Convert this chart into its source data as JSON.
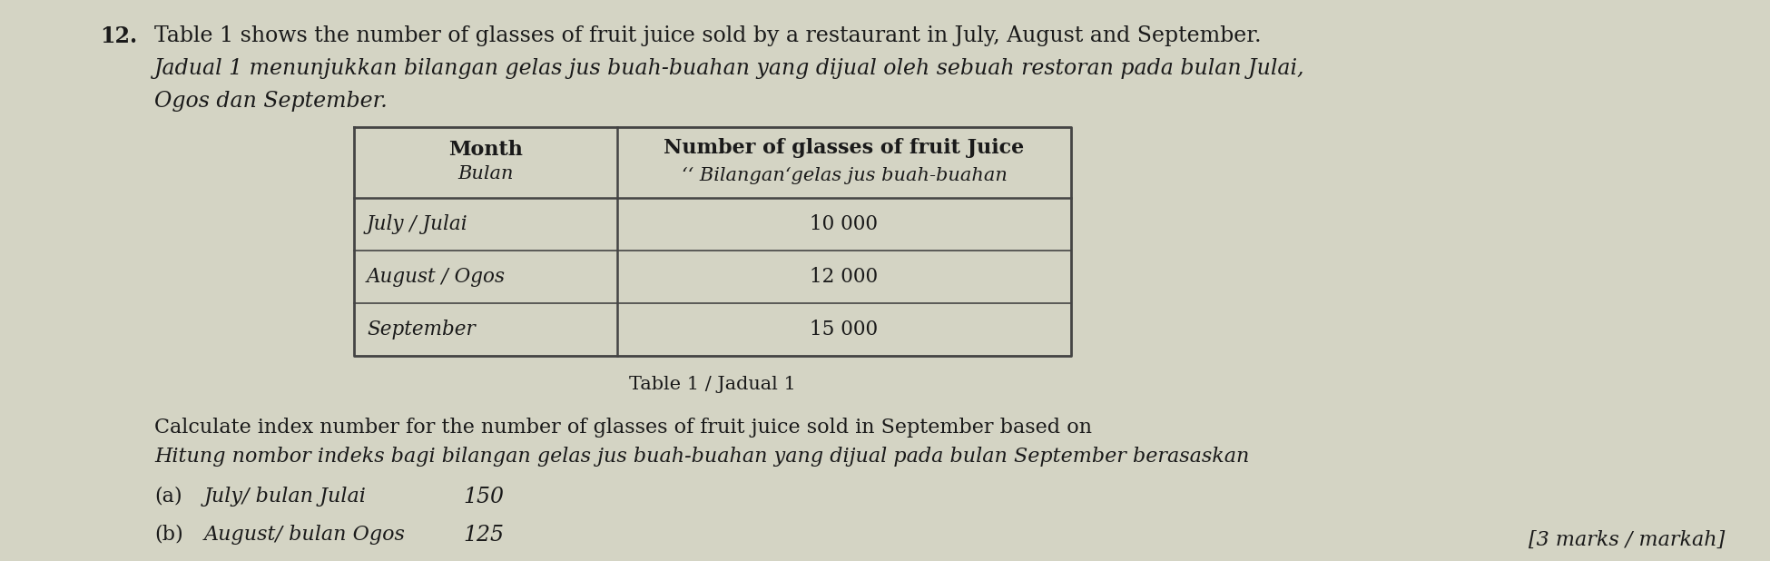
{
  "bg_color": "#d4d4c4",
  "question_number": "12.",
  "intro_line1": "Table 1 shows the number of glasses of fruit juice sold by a restaurant in July, August and September.",
  "intro_line2": "Jadual 1 menunjukkan bilangan gelas jus buah-buahan yang dijual oleh sebuah restoran pada bulan Julai,",
  "intro_line3": "Ogos dan September.",
  "table_caption": "Table 1 / Jadual 1",
  "col1_header_line1": "Month",
  "col1_header_line2": "Bulan",
  "col2_header_line1": "Number of glasses of fruit Juice",
  "col2_header_line2": "‘‘ Bilanganʻgelas jus buah-buahan",
  "row1_col1": "July / Julai",
  "row1_col2": "10 000",
  "row2_col1": "August / Ogos",
  "row2_col2": "12 000",
  "row3_col1": "September",
  "row3_col2": "15 000",
  "question_line1": "Calculate index number for the number of glasses of fruit juice sold in September based on",
  "question_line2": "Hitung nombor indeks bagi bilangan gelas jus buah-buahan yang dijual pada bulan September berasaskan",
  "part_a_label": "(a)",
  "part_a_text": "July/ bulan Julai",
  "part_a_answer": "150",
  "part_b_label": "(b)",
  "part_b_text": "August/ bulan Ogos",
  "part_b_answer": "125",
  "marks_text": "[3 marks / markah]",
  "font_color": "#1a1a1a"
}
